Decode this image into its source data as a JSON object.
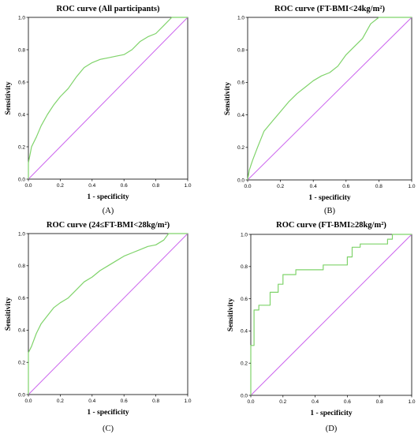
{
  "chart_data": [
    {
      "type": "line",
      "panel_label": "(A)",
      "title": "ROC curve (All participants)",
      "xlabel": "1 - specificity",
      "ylabel": "Sensitivity",
      "xlim": [
        0,
        1
      ],
      "ylim": [
        0,
        1
      ],
      "xticks": [
        "0.0",
        "0.2",
        "0.4",
        "0.6",
        "0.8",
        "1.0"
      ],
      "yticks": [
        "0.0",
        "0.2",
        "0.4",
        "0.6",
        "0.8",
        "1.0"
      ],
      "grid": false,
      "colors": {
        "roc": "#7fd36a",
        "reference": "#cc66ee"
      },
      "reference_line": {
        "x": [
          0,
          1
        ],
        "y": [
          0,
          1
        ]
      },
      "series": [
        {
          "x": [
            0,
            0,
            0.02,
            0.05,
            0.08,
            0.12,
            0.16,
            0.2,
            0.25,
            0.3,
            0.35,
            0.4,
            0.45,
            0.5,
            0.55,
            0.6,
            0.65,
            0.7,
            0.75,
            0.8,
            0.85,
            0.9,
            0.95,
            1.0
          ],
          "y": [
            0,
            0.1,
            0.2,
            0.26,
            0.33,
            0.4,
            0.46,
            0.51,
            0.56,
            0.63,
            0.69,
            0.72,
            0.74,
            0.75,
            0.76,
            0.77,
            0.8,
            0.85,
            0.88,
            0.9,
            0.95,
            1.0,
            1.0,
            1.0
          ]
        }
      ]
    },
    {
      "type": "line",
      "panel_label": "(B)",
      "title": "ROC curve (FT-BMI<24kg/m²)",
      "xlabel": "1 - specificity",
      "ylabel": "Sensitivity",
      "xlim": [
        0,
        1
      ],
      "ylim": [
        0,
        1
      ],
      "xticks": [
        "0.0",
        "0.2",
        "0.4",
        "0.6",
        "0.8",
        "1.0"
      ],
      "yticks": [
        "0.0",
        "0.2",
        "0.4",
        "0.6",
        "0.8",
        "1.0"
      ],
      "grid": false,
      "colors": {
        "roc": "#7fd36a",
        "reference": "#cc66ee"
      },
      "reference_line": {
        "x": [
          0,
          1
        ],
        "y": [
          0,
          1
        ]
      },
      "series": [
        {
          "x": [
            0,
            0.01,
            0.03,
            0.06,
            0.1,
            0.15,
            0.2,
            0.25,
            0.3,
            0.35,
            0.4,
            0.45,
            0.5,
            0.55,
            0.6,
            0.65,
            0.7,
            0.75,
            0.8,
            1.0
          ],
          "y": [
            0,
            0.06,
            0.12,
            0.2,
            0.3,
            0.36,
            0.42,
            0.48,
            0.53,
            0.57,
            0.61,
            0.64,
            0.66,
            0.7,
            0.77,
            0.82,
            0.87,
            0.96,
            1.0,
            1.0
          ]
        }
      ]
    },
    {
      "type": "line",
      "panel_label": "(C)",
      "title": "ROC curve (24≤FT-BMI<28kg/m²)",
      "xlabel": "1 - specificity",
      "ylabel": "Sensitivity",
      "xlim": [
        0,
        1
      ],
      "ylim": [
        0,
        1
      ],
      "xticks": [
        "0.0",
        "0.2",
        "0.4",
        "0.6",
        "0.8",
        "1.0"
      ],
      "yticks": [
        "0.0",
        "0.2",
        "0.4",
        "0.6",
        "0.8",
        "1.0"
      ],
      "grid": false,
      "colors": {
        "roc": "#7fd36a",
        "reference": "#cc66ee"
      },
      "reference_line": {
        "x": [
          0,
          1
        ],
        "y": [
          0,
          1
        ]
      },
      "series": [
        {
          "x": [
            0,
            0,
            0.02,
            0.05,
            0.08,
            0.12,
            0.16,
            0.2,
            0.25,
            0.3,
            0.35,
            0.4,
            0.45,
            0.5,
            0.55,
            0.6,
            0.65,
            0.7,
            0.75,
            0.8,
            0.85,
            0.88,
            1.0
          ],
          "y": [
            0,
            0.26,
            0.3,
            0.38,
            0.44,
            0.49,
            0.54,
            0.57,
            0.6,
            0.65,
            0.7,
            0.73,
            0.77,
            0.8,
            0.83,
            0.86,
            0.88,
            0.9,
            0.92,
            0.93,
            0.96,
            1.0,
            1.0
          ]
        }
      ]
    },
    {
      "type": "line",
      "panel_label": "(D)",
      "title": "ROC curve (FT-BMI≥28kg/m²)",
      "xlabel": "1 - specificity",
      "ylabel": "Sensitivity",
      "xlim": [
        0,
        1
      ],
      "ylim": [
        0,
        1
      ],
      "xticks": [
        "0.0",
        "0.2",
        "0.4",
        "0.6",
        "0.8",
        "1.0"
      ],
      "yticks": [
        "0.0",
        "0.2",
        "0.4",
        "0.6",
        "0.8",
        "1.0"
      ],
      "grid": false,
      "step": true,
      "colors": {
        "roc": "#7fd36a",
        "reference": "#cc66ee"
      },
      "reference_line": {
        "x": [
          0,
          1
        ],
        "y": [
          0,
          1
        ]
      },
      "series": [
        {
          "x": [
            0,
            0,
            0.02,
            0.02,
            0.05,
            0.05,
            0.08,
            0.08,
            0.12,
            0.12,
            0.17,
            0.17,
            0.2,
            0.2,
            0.28,
            0.28,
            0.36,
            0.36,
            0.45,
            0.45,
            0.6,
            0.6,
            0.63,
            0.63,
            0.68,
            0.68,
            0.85,
            0.85,
            0.88,
            0.88,
            1.0
          ],
          "y": [
            0,
            0.31,
            0.31,
            0.53,
            0.53,
            0.56,
            0.56,
            0.56,
            0.56,
            0.64,
            0.64,
            0.69,
            0.69,
            0.75,
            0.75,
            0.78,
            0.78,
            0.78,
            0.78,
            0.81,
            0.81,
            0.86,
            0.86,
            0.92,
            0.92,
            0.94,
            0.94,
            0.97,
            0.97,
            1.0,
            1.0
          ]
        }
      ]
    }
  ]
}
